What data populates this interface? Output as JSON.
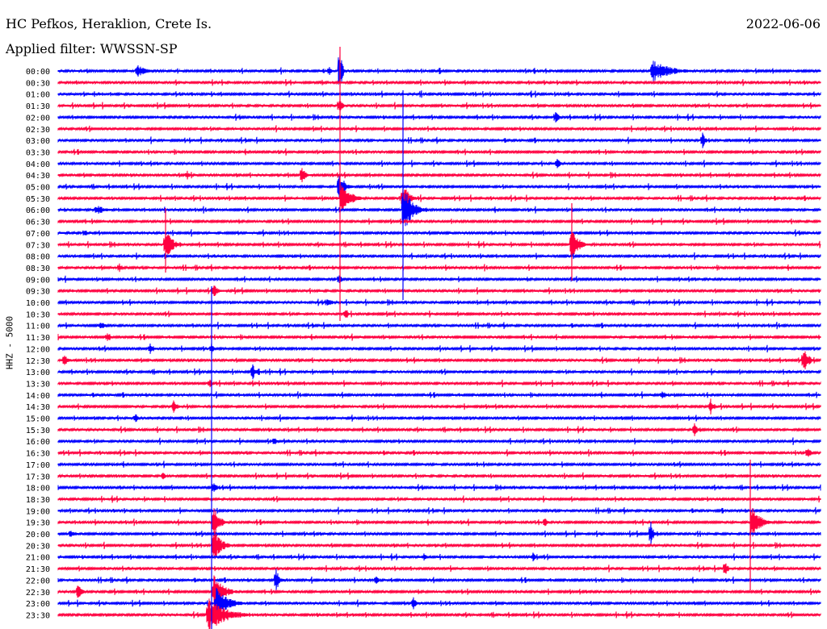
{
  "header": {
    "station": "HC Pefkos, Heraklion, Crete Is.",
    "date": "2022-06-06",
    "filter": "Applied filter: WWSSN-SP"
  },
  "chart_data": {
    "type": "line",
    "title": "HC Pefkos, Heraklion, Crete Is.",
    "subtitle": "Applied filter: WWSSN-SP",
    "date": "2022-06-06",
    "ylabel": "HHZ - 5000",
    "xlabel": "",
    "row_labels": [
      "00:00",
      "00:30",
      "01:00",
      "01:30",
      "02:00",
      "02:30",
      "03:00",
      "03:30",
      "04:00",
      "04:30",
      "05:00",
      "05:30",
      "06:00",
      "06:30",
      "07:00",
      "07:30",
      "08:00",
      "08:30",
      "09:00",
      "09:30",
      "10:00",
      "10:30",
      "11:00",
      "11:30",
      "12:00",
      "12:30",
      "13:00",
      "13:30",
      "14:00",
      "14:30",
      "15:00",
      "15:30",
      "16:00",
      "16:30",
      "17:00",
      "17:30",
      "18:00",
      "18:30",
      "19:00",
      "19:30",
      "20:00",
      "20:30",
      "21:00",
      "21:30",
      "22:00",
      "22:30",
      "23:00",
      "23:30"
    ],
    "row_duration_minutes": 30,
    "colors": [
      "#0000ff",
      "#ff0040"
    ],
    "grid": false
  }
}
